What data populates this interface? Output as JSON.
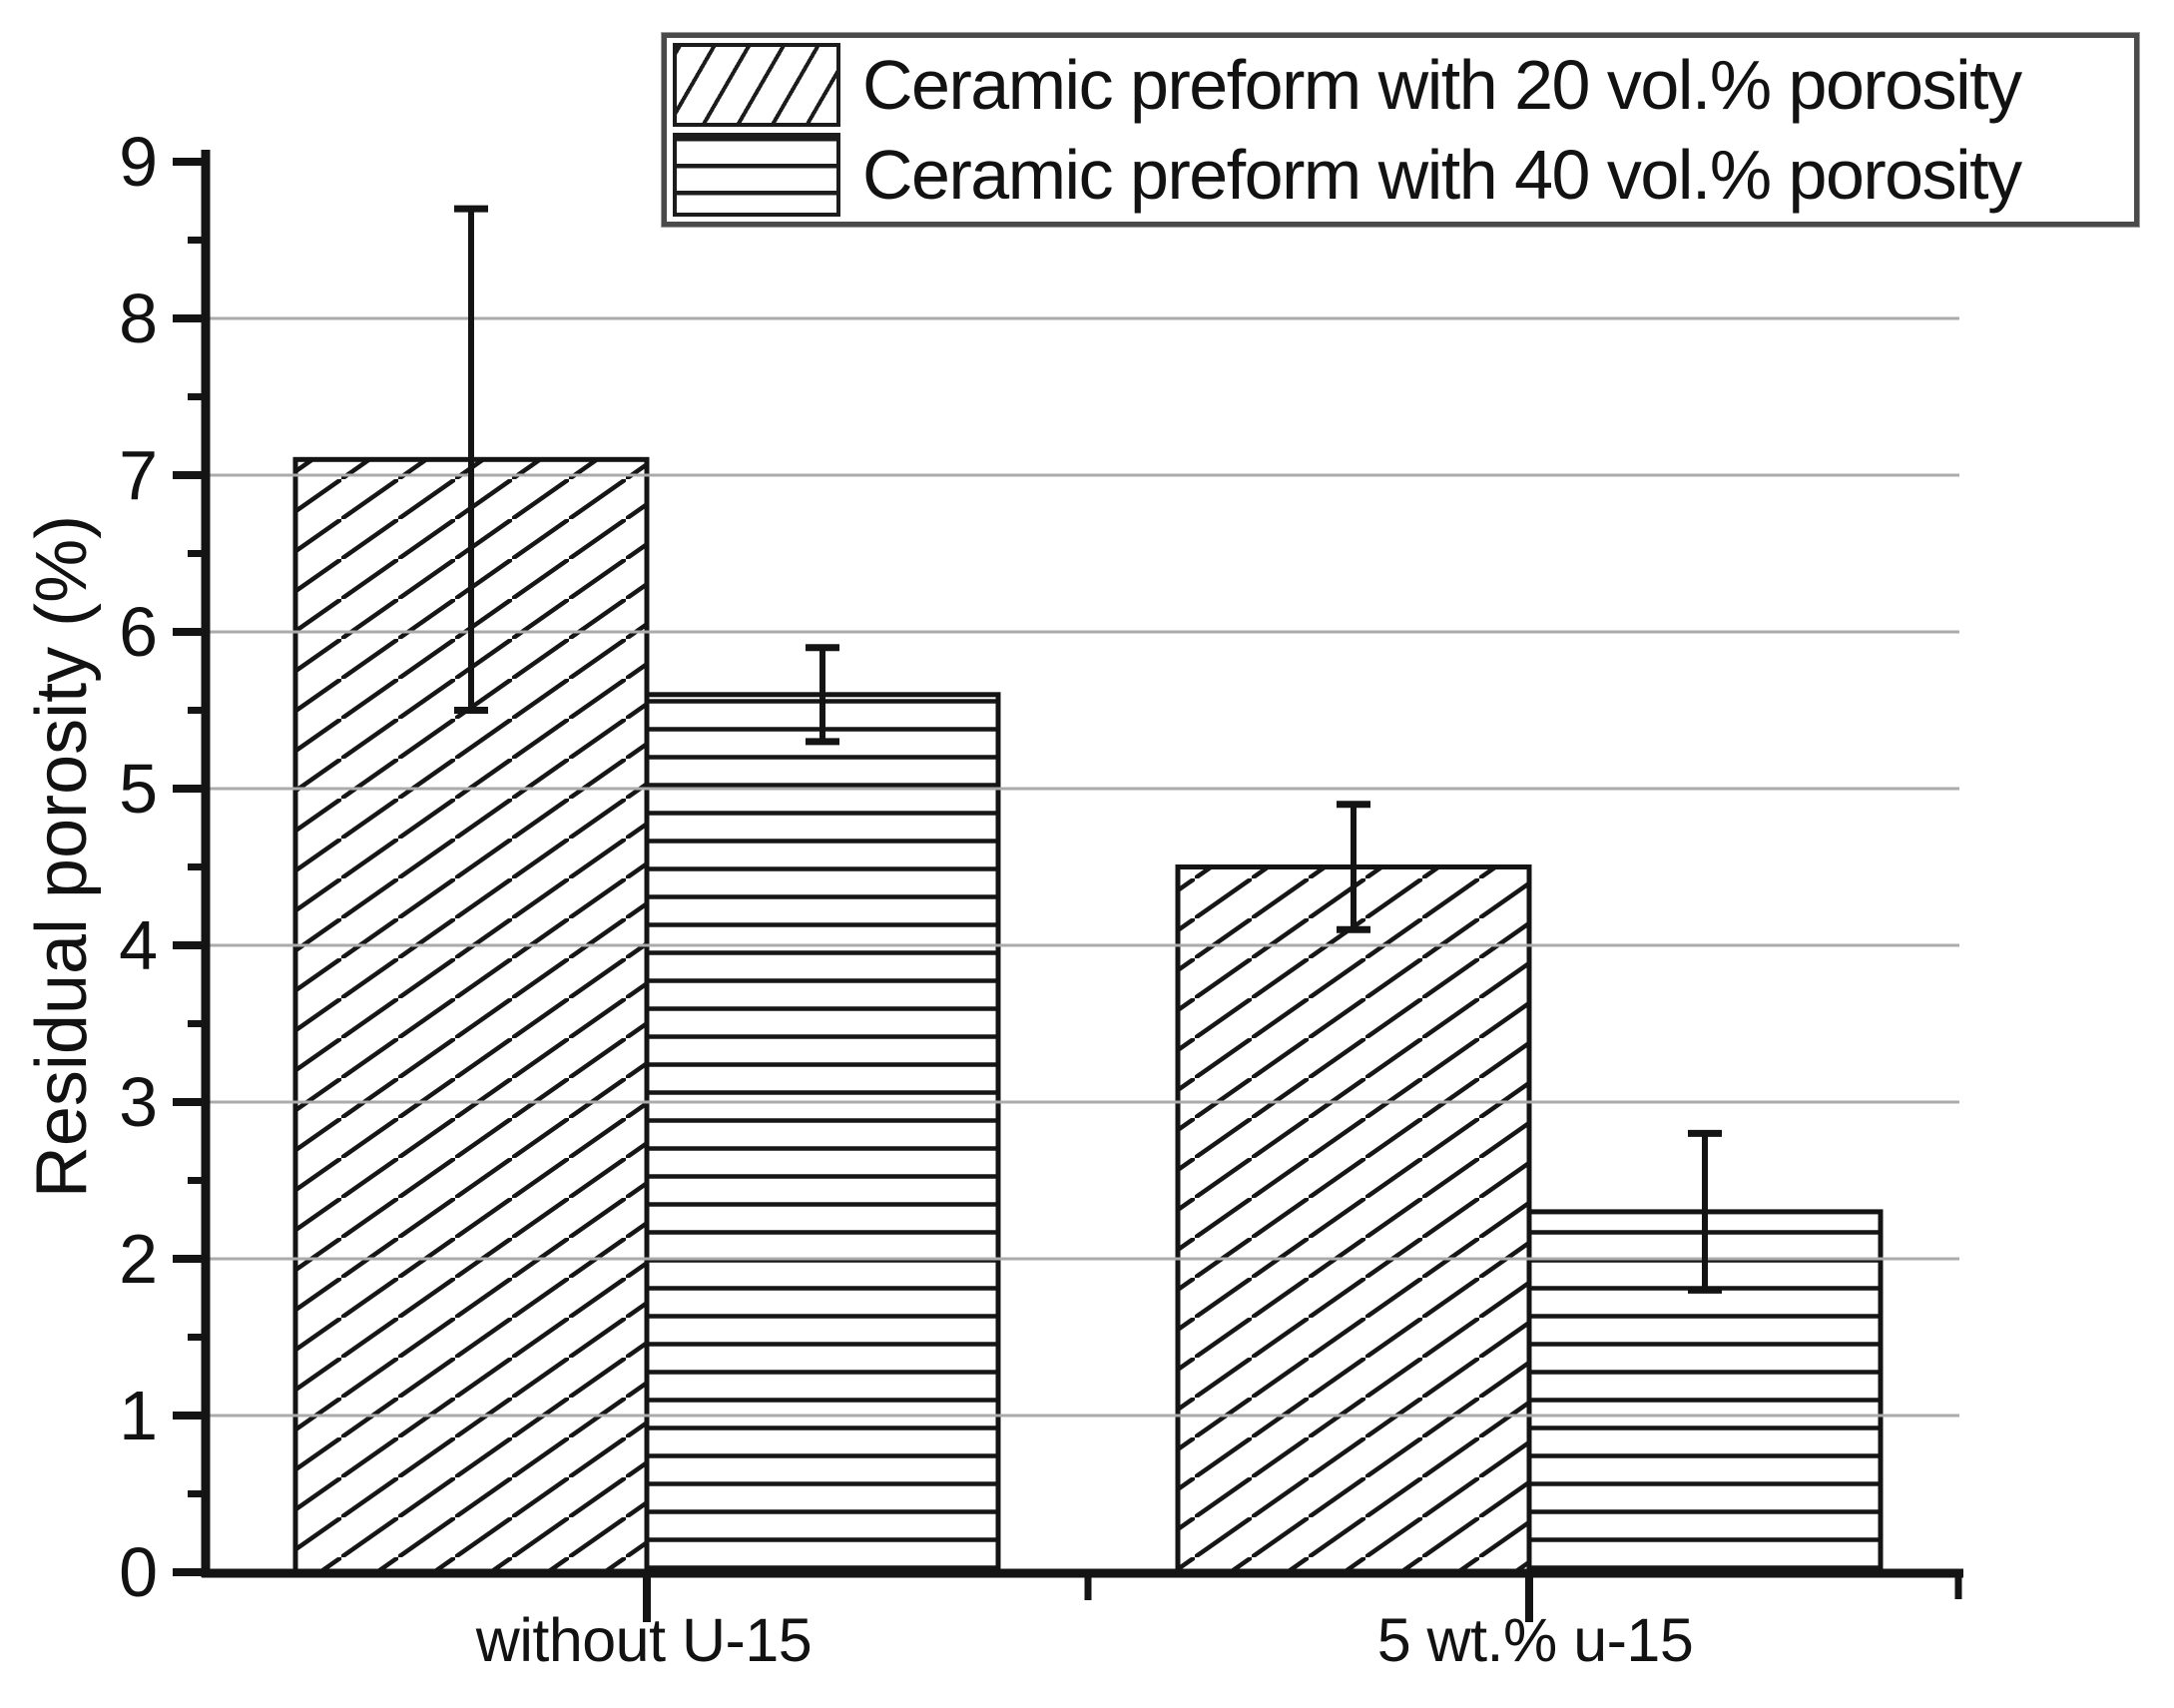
{
  "chart_data": {
    "type": "bar",
    "title": "",
    "categories": [
      "without U-15",
      "5 wt.% u-15"
    ],
    "series": [
      {
        "name": "Ceramic preform with 20 vol.% porosity",
        "hatch": "diagonal",
        "values": [
          7.1,
          4.5
        ],
        "errors": [
          1.6,
          0.4
        ]
      },
      {
        "name": "Ceramic preform with 40 vol.% porosity",
        "hatch": "horizontal",
        "values": [
          5.6,
          2.3
        ],
        "errors": [
          0.3,
          0.5
        ]
      }
    ],
    "xlabel": "",
    "ylabel": "Residual porosity (%)",
    "ylim": [
      0,
      9
    ],
    "ytick_step": 1,
    "yminor_step": 0.5,
    "ytick_labels": [
      "0",
      "1",
      "2",
      "3",
      "4",
      "5",
      "6",
      "7",
      "8",
      "9"
    ],
    "gridline_values": [
      1,
      2,
      3,
      4,
      5,
      6,
      7,
      8
    ],
    "grid": "horizontal",
    "legend_position": "top-right",
    "bar_fill": "#ffffff",
    "colors": {
      "ink": "#141414",
      "gridline": "#ababab",
      "background": "#ffffff"
    }
  }
}
